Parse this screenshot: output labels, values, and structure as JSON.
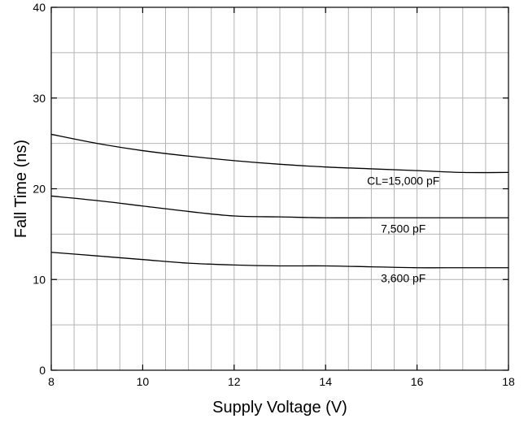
{
  "chart_data": {
    "type": "line",
    "title": "",
    "xlabel": "Supply Voltage (V)",
    "ylabel": "Fall Time (ns)",
    "xlim": [
      8,
      18
    ],
    "ylim": [
      0,
      40
    ],
    "xticks": [
      8,
      10,
      12,
      14,
      16,
      18
    ],
    "yticks": [
      0,
      10,
      20,
      30,
      40
    ],
    "grid": true,
    "series": [
      {
        "name": "CL=15,000 pF",
        "x": [
          8,
          9,
          10,
          11,
          12,
          13,
          14,
          15,
          16,
          17,
          18
        ],
        "y": [
          26.0,
          25.0,
          24.2,
          23.6,
          23.1,
          22.7,
          22.4,
          22.2,
          22.0,
          21.8,
          21.8
        ]
      },
      {
        "name": "7,500 pF",
        "x": [
          8,
          9,
          10,
          11,
          12,
          13,
          14,
          15,
          16,
          17,
          18
        ],
        "y": [
          19.2,
          18.7,
          18.1,
          17.5,
          17.0,
          16.9,
          16.8,
          16.8,
          16.8,
          16.8,
          16.8
        ]
      },
      {
        "name": "3,600 pF",
        "x": [
          8,
          9,
          10,
          11,
          12,
          13,
          14,
          15,
          16,
          17,
          18
        ],
        "y": [
          13.0,
          12.6,
          12.2,
          11.8,
          11.6,
          11.5,
          11.5,
          11.4,
          11.3,
          11.3,
          11.3
        ]
      }
    ]
  }
}
